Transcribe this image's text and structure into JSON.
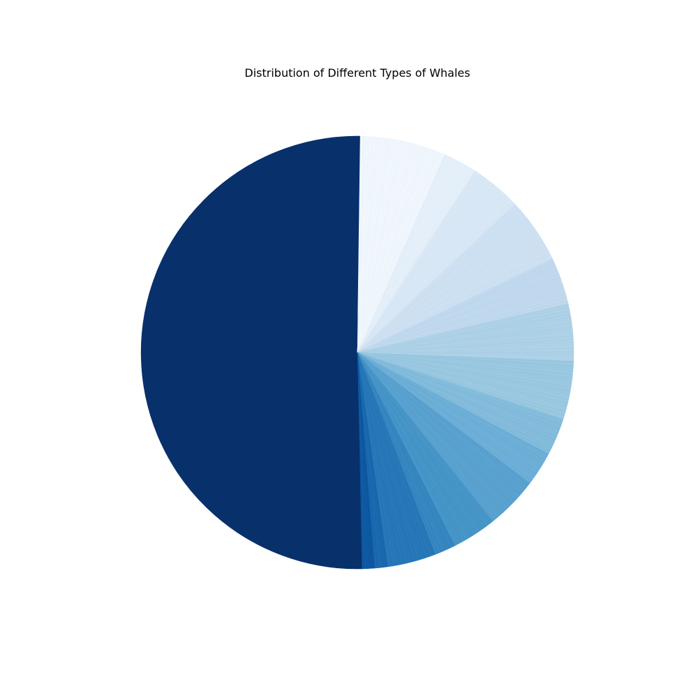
{
  "chart_data": {
    "type": "pie",
    "title": "Distribution of Different Types of Whales",
    "start_angle_deg": 90,
    "direction": "clockwise",
    "colormap": [
      "#f7fbff",
      "#deebf7",
      "#c6dbef",
      "#9ecae1",
      "#6baed6",
      "#4292c6",
      "#2171b5",
      "#08519c",
      "#08306b"
    ],
    "slices": [
      {
        "value": 0.2
      },
      {
        "value": 6.0
      },
      {
        "value": 2.4
      },
      {
        "value": 3.6
      },
      {
        "value": 4.6
      },
      {
        "value": 3.3
      },
      {
        "value": 4.0
      },
      {
        "value": 4.1
      },
      {
        "value": 2.6
      },
      {
        "value": 2.4
      },
      {
        "value": 3.7
      },
      {
        "value": 3.1
      },
      {
        "value": 1.5
      },
      {
        "value": 3.4
      },
      {
        "value": 0.9
      },
      {
        "value": 0.9
      },
      {
        "value": 47.3
      }
    ]
  }
}
